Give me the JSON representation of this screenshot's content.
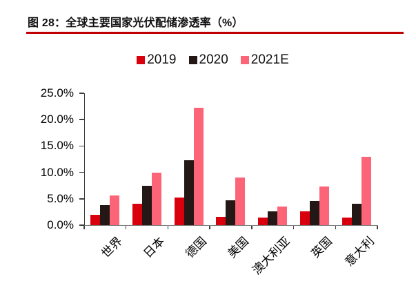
{
  "figure": {
    "title": "图 28：全球主要国家光伏配储渗透率（%）"
  },
  "chart_data": {
    "type": "bar",
    "title": "全球主要国家光伏配储渗透率（%）",
    "categories": [
      "世界",
      "日本",
      "德国",
      "美国",
      "澳大利亚",
      "英国",
      "意大利"
    ],
    "category_slugs": [
      "world",
      "japan",
      "germany",
      "usa",
      "australia",
      "uk",
      "italy"
    ],
    "series": [
      {
        "name": "2019",
        "color": "#d9000e",
        "values": [
          2.0,
          4.0,
          5.2,
          1.6,
          1.5,
          2.6,
          1.5
        ]
      },
      {
        "name": "2020",
        "color": "#231815",
        "values": [
          3.8,
          7.5,
          12.3,
          4.7,
          2.6,
          4.6,
          4.1
        ]
      },
      {
        "name": "2021E",
        "color": "#fc6577",
        "values": [
          5.7,
          10.0,
          22.2,
          9.0,
          3.5,
          7.4,
          13.0
        ]
      }
    ],
    "xlabel": "",
    "ylabel": "",
    "unit": "%",
    "ylim": [
      0,
      25
    ],
    "ytick_step": 5,
    "ytick_labels": [
      "0.0%",
      "5.0%",
      "10.0%",
      "15.0%",
      "20.0%",
      "25.0%"
    ],
    "legend_position": "top-center",
    "grid": false
  },
  "colors": {
    "title_rule": "#c00000",
    "axis_line": "#808080",
    "tick": "#404040",
    "background": "#ffffff",
    "text": "#000000"
  }
}
